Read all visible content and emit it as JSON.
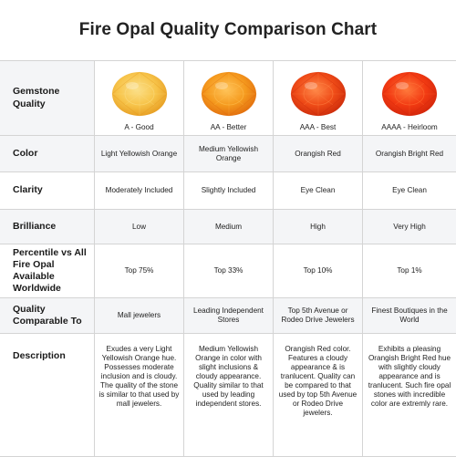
{
  "title": "Fire Opal Quality Comparison Chart",
  "rows": {
    "gemstone_quality": "Gemstone Quality",
    "color": "Color",
    "clarity": "Clarity",
    "brilliance": "Brilliance",
    "percentile": "Percentile vs All Fire Opal Available Worldwide",
    "comparable": "Quality Comparable To",
    "description": "Description"
  },
  "grades": [
    {
      "label": "A - Good",
      "gem_colors": [
        "#f7c44a",
        "#e59a1f",
        "#fbe08a"
      ],
      "color": "Light Yellowish Orange",
      "clarity": "Moderately Included",
      "brilliance": "Low",
      "percentile": "Top 75%",
      "comparable": "Mall jewelers",
      "description": "Exudes a very Light Yellowish Orange hue. Possesses moderate inclusion and is cloudy. The quality of the stone is similar to that used by mall jewelers."
    },
    {
      "label": "AA - Better",
      "gem_colors": [
        "#f59a1e",
        "#e06a0c",
        "#ffc45a"
      ],
      "color": "Medium Yellowish Orange",
      "clarity": "Slightly Included",
      "brilliance": "Medium",
      "percentile": "Top 33%",
      "comparable": "Leading Independent Stores",
      "description": "Medium Yellowish Orange in color with slight inclusions & cloudy appearance. Quality similar to that used by leading independent stores."
    },
    {
      "label": "AAA - Best",
      "gem_colors": [
        "#ef4b17",
        "#c9290a",
        "#ff8a4a"
      ],
      "color": "Orangish Red",
      "clarity": "Eye Clean",
      "brilliance": "High",
      "percentile": "Top 10%",
      "comparable": "Top 5th Avenue or Rodeo Drive Jewelers",
      "description": "Orangish Red color. Features a cloudy appearance & is tranlucent. Quality can be compared to that used by top 5th Avenue or Rodeo Drive jewelers."
    },
    {
      "label": "AAAA - Heirloom",
      "gem_colors": [
        "#f23a12",
        "#d0240a",
        "#ff7a3c"
      ],
      "color": "Orangish Bright Red",
      "clarity": "Eye Clean",
      "brilliance": "Very High",
      "percentile": "Top 1%",
      "comparable": "Finest Boutiques in the World",
      "description": "Exhibits a pleasing Orangish Bright Red hue with slightly cloudy appearance and is tranlucent. Such fire opal stones with incredible color are extremly rare."
    }
  ]
}
